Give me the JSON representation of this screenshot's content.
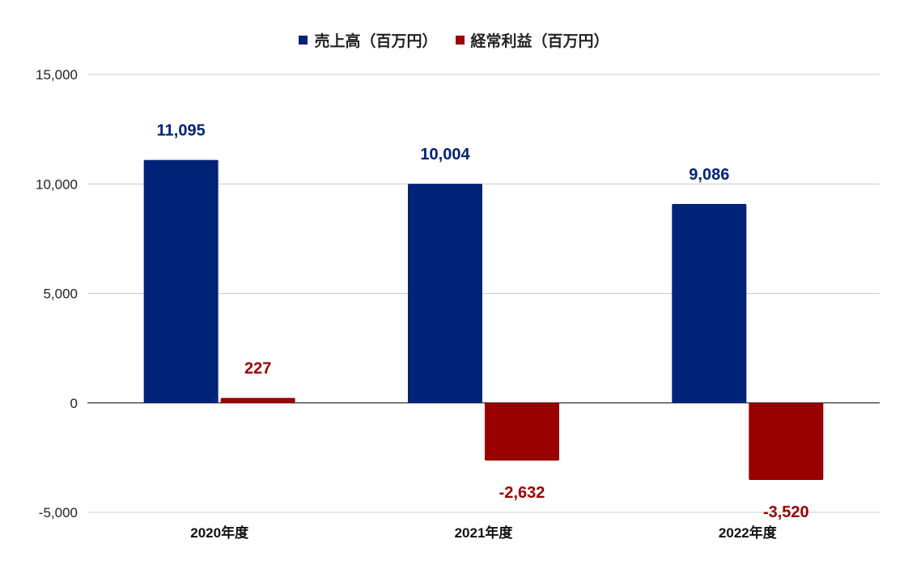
{
  "chart_data": {
    "type": "bar",
    "categories": [
      "2020年度",
      "2021年度",
      "2022年度"
    ],
    "series": [
      {
        "name": "売上高（百万円）",
        "values": [
          11095,
          10004,
          9086
        ],
        "labels": [
          "11,095",
          "10,004",
          "9,086"
        ],
        "color": "#002277"
      },
      {
        "name": "経常利益（百万円）",
        "values": [
          227,
          -2632,
          -3520
        ],
        "labels": [
          "227",
          "-2,632",
          "-3,520"
        ],
        "color": "#990000"
      }
    ],
    "ylim": [
      -5000,
      15000
    ],
    "yticks": [
      -5000,
      0,
      5000,
      10000,
      15000
    ],
    "ytick_labels": [
      "-5,000",
      "0",
      "5,000",
      "10,000",
      "15,000"
    ],
    "grid": true,
    "legend_position": "top-center",
    "zero_line_color": "#333333",
    "grid_color": "#cccccc"
  }
}
